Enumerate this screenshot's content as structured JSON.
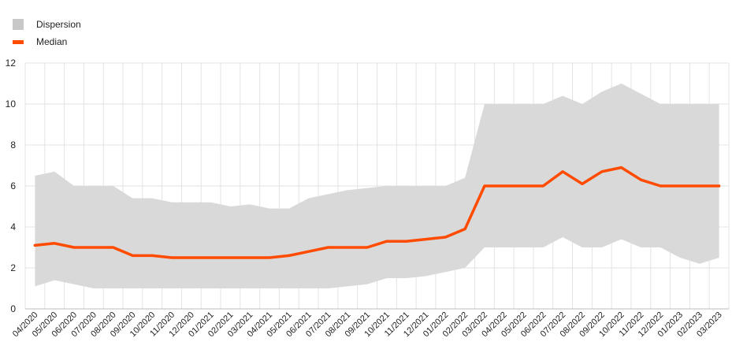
{
  "chart_data": {
    "type": "area",
    "title": "",
    "xlabel": "",
    "ylabel": "",
    "ylim": [
      0,
      12
    ],
    "yticks": [
      0,
      2,
      4,
      6,
      8,
      10,
      12
    ],
    "grid": true,
    "legend_placement": "top-left",
    "categories": [
      "04/2020",
      "05/2020",
      "06/2020",
      "07/2020",
      "08/2020",
      "09/2020",
      "10/2020",
      "11/2020",
      "12/2020",
      "01/2021",
      "02/2021",
      "03/2021",
      "04/2021",
      "05/2021",
      "06/2021",
      "07/2021",
      "08/2021",
      "09/2021",
      "10/2021",
      "11/2021",
      "12/2021",
      "01/2022",
      "02/2022",
      "03/2022",
      "04/2022",
      "05/2022",
      "06/2022",
      "07/2022",
      "08/2022",
      "09/2022",
      "10/2022",
      "11/2022",
      "12/2022",
      "01/2023",
      "02/2023",
      "03/2023"
    ],
    "series": [
      {
        "name": "Dispersion",
        "kind": "band",
        "color": "#d9d9d9",
        "upper": [
          6.5,
          6.7,
          6.0,
          6.0,
          6.0,
          5.4,
          5.4,
          5.2,
          5.2,
          5.2,
          5.0,
          5.1,
          4.9,
          4.9,
          5.4,
          5.6,
          5.8,
          5.9,
          6.0,
          6.0,
          6.0,
          6.0,
          6.4,
          10.0,
          10.0,
          10.0,
          10.0,
          10.4,
          10.0,
          10.6,
          11.0,
          10.5,
          10.0,
          10.0,
          10.0,
          10.0
        ],
        "lower": [
          1.1,
          1.4,
          1.2,
          1.0,
          1.0,
          1.0,
          1.0,
          1.0,
          1.0,
          1.0,
          1.0,
          1.0,
          1.0,
          1.0,
          1.0,
          1.0,
          1.1,
          1.2,
          1.5,
          1.5,
          1.6,
          1.8,
          2.0,
          3.0,
          3.0,
          3.0,
          3.0,
          3.5,
          3.0,
          3.0,
          3.4,
          3.0,
          3.0,
          2.5,
          2.2,
          2.5
        ]
      },
      {
        "name": "Median",
        "kind": "line",
        "color": "#ff4b00",
        "values": [
          3.1,
          3.2,
          3.0,
          3.0,
          3.0,
          2.6,
          2.6,
          2.5,
          2.5,
          2.5,
          2.5,
          2.5,
          2.5,
          2.6,
          2.8,
          3.0,
          3.0,
          3.0,
          3.3,
          3.3,
          3.4,
          3.5,
          3.9,
          6.0,
          6.0,
          6.0,
          6.0,
          6.7,
          6.1,
          6.7,
          6.9,
          6.3,
          6.0,
          6.0,
          6.0,
          6.0
        ]
      }
    ]
  }
}
